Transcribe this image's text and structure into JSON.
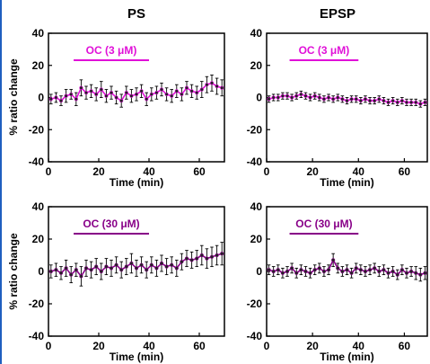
{
  "colors": {
    "magenta": "#e010d8",
    "purple": "#880088",
    "frame": "#000000"
  },
  "columns": [
    "PS",
    "EPSP"
  ],
  "ylabel": "% ratio change",
  "chart_data": [
    {
      "type": "line",
      "column": "PS",
      "xlabel": "Time (min)",
      "ylabel": "% ratio change",
      "xlim": [
        0,
        70
      ],
      "ylim": [
        -40,
        40
      ],
      "xticks": [
        0,
        20,
        40,
        60
      ],
      "yticks": [
        -40,
        -20,
        0,
        20,
        40
      ],
      "annotation": {
        "text": "OC (3 μM)",
        "x_start": 10,
        "x_end": 40,
        "color": "#e010d8"
      },
      "series": [
        {
          "color": "#e010d8",
          "x": [
            1,
            3,
            5,
            7,
            9,
            11,
            13,
            15,
            17,
            19,
            21,
            23,
            25,
            27,
            29,
            31,
            33,
            35,
            37,
            39,
            41,
            43,
            45,
            47,
            49,
            51,
            53,
            55,
            57,
            59,
            61,
            63,
            65,
            67,
            69
          ],
          "y": [
            -1,
            0,
            -2,
            1,
            2,
            -1,
            6,
            3,
            4,
            2,
            5,
            1,
            3,
            0,
            -2,
            3,
            1,
            2,
            4,
            -1,
            2,
            3,
            5,
            2,
            1,
            4,
            2,
            6,
            4,
            3,
            5,
            8,
            9,
            7,
            6
          ],
          "err": [
            3,
            3,
            3,
            4,
            3,
            4,
            5,
            4,
            4,
            4,
            5,
            4,
            4,
            4,
            4,
            4,
            4,
            4,
            4,
            4,
            4,
            4,
            4,
            4,
            4,
            4,
            4,
            4,
            4,
            4,
            5,
            5,
            5,
            5,
            5
          ]
        }
      ]
    },
    {
      "type": "line",
      "column": "EPSP",
      "xlabel": "Time (min)",
      "ylabel": "",
      "xlim": [
        0,
        70
      ],
      "ylim": [
        -40,
        40
      ],
      "xticks": [
        0,
        20,
        40,
        60
      ],
      "yticks": [
        -40,
        -20,
        0,
        20,
        40
      ],
      "annotation": {
        "text": "OC (3 μM)",
        "x_start": 10,
        "x_end": 40,
        "color": "#e010d8"
      },
      "series": [
        {
          "color": "#e010d8",
          "x": [
            1,
            3,
            5,
            7,
            9,
            11,
            13,
            15,
            17,
            19,
            21,
            23,
            25,
            27,
            29,
            31,
            33,
            35,
            37,
            39,
            41,
            43,
            45,
            47,
            49,
            51,
            53,
            55,
            57,
            59,
            61,
            63,
            65,
            67,
            69
          ],
          "y": [
            -1,
            0,
            0,
            1,
            1,
            0,
            1,
            2,
            1,
            0,
            1,
            0,
            -1,
            0,
            -1,
            0,
            -1,
            -2,
            -1,
            -1,
            -2,
            -1,
            -2,
            -2,
            -1,
            -2,
            -3,
            -2,
            -3,
            -2,
            -3,
            -3,
            -3,
            -4,
            -3
          ],
          "err": [
            2,
            2,
            2,
            2,
            2,
            2,
            2,
            2,
            2,
            2,
            2,
            2,
            2,
            2,
            2,
            2,
            2,
            2,
            2,
            2,
            2,
            2,
            2,
            2,
            2,
            2,
            2,
            2,
            2,
            2,
            2,
            2,
            2,
            2,
            2
          ]
        }
      ]
    },
    {
      "type": "line",
      "column": "PS",
      "xlabel": "Time (min)",
      "ylabel": "% ratio change",
      "xlim": [
        0,
        70
      ],
      "ylim": [
        -40,
        40
      ],
      "xticks": [
        0,
        20,
        40,
        60
      ],
      "yticks": [
        -40,
        -20,
        0,
        20,
        40
      ],
      "annotation": {
        "text": "OC (30 μM)",
        "x_start": 10,
        "x_end": 40,
        "color": "#880088"
      },
      "series": [
        {
          "color": "#880088",
          "x": [
            1,
            3,
            5,
            7,
            9,
            11,
            13,
            15,
            17,
            19,
            21,
            23,
            25,
            27,
            29,
            31,
            33,
            35,
            37,
            39,
            41,
            43,
            45,
            47,
            49,
            51,
            53,
            55,
            57,
            59,
            61,
            63,
            65,
            67,
            69
          ],
          "y": [
            0,
            1,
            -1,
            2,
            -2,
            1,
            -3,
            2,
            1,
            3,
            0,
            3,
            2,
            4,
            1,
            3,
            5,
            2,
            4,
            1,
            4,
            2,
            5,
            3,
            4,
            2,
            6,
            8,
            7,
            8,
            10,
            8,
            9,
            10,
            11
          ],
          "err": [
            4,
            4,
            4,
            5,
            5,
            4,
            6,
            5,
            5,
            5,
            5,
            5,
            5,
            5,
            5,
            5,
            6,
            5,
            5,
            5,
            5,
            5,
            5,
            5,
            5,
            5,
            5,
            5,
            5,
            5,
            6,
            6,
            6,
            6,
            7
          ]
        }
      ]
    },
    {
      "type": "line",
      "column": "EPSP",
      "xlabel": "Time (min)",
      "ylabel": "",
      "xlim": [
        0,
        70
      ],
      "ylim": [
        -40,
        40
      ],
      "xticks": [
        0,
        20,
        40,
        60
      ],
      "yticks": [
        -40,
        -20,
        0,
        20,
        40
      ],
      "annotation": {
        "text": "OC (30 μM)",
        "x_start": 10,
        "x_end": 40,
        "color": "#880088"
      },
      "series": [
        {
          "color": "#880088",
          "x": [
            1,
            3,
            5,
            7,
            9,
            11,
            13,
            15,
            17,
            19,
            21,
            23,
            25,
            27,
            29,
            31,
            33,
            35,
            37,
            39,
            41,
            43,
            45,
            47,
            49,
            51,
            53,
            55,
            57,
            59,
            61,
            63,
            65,
            67,
            69
          ],
          "y": [
            1,
            0,
            1,
            -1,
            0,
            2,
            -1,
            1,
            0,
            -1,
            1,
            2,
            0,
            1,
            7,
            2,
            0,
            1,
            -1,
            2,
            1,
            0,
            1,
            2,
            0,
            1,
            -1,
            0,
            -2,
            1,
            -1,
            0,
            -1,
            -2,
            -1
          ],
          "err": [
            3,
            3,
            3,
            3,
            3,
            3,
            3,
            3,
            3,
            3,
            3,
            3,
            3,
            3,
            4,
            3,
            3,
            3,
            3,
            3,
            3,
            3,
            3,
            3,
            3,
            3,
            3,
            3,
            3,
            3,
            3,
            3,
            4,
            4,
            4
          ]
        }
      ]
    }
  ]
}
